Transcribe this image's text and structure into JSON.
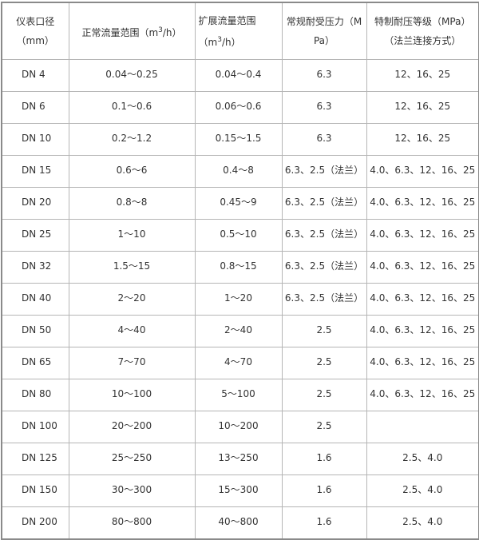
{
  "headers": {
    "c1": "仪表口径（mm）",
    "c2_pre": "正常流量范围（m",
    "c2_sup": "3",
    "c2_post": "/h）",
    "c3_pre": "扩展流量范围（m",
    "c3_sup": "3",
    "c3_post": "/h）",
    "c4": "常规耐受压力（MPa）",
    "c5": "特制耐压等级（MPa）（法兰连接方式）"
  },
  "rows": [
    [
      "DN 4",
      "0.04～0.25",
      "0.04～0.4",
      "6.3",
      "12、16、25"
    ],
    [
      "DN 6",
      "0.1～0.6",
      "0.06～0.6",
      "6.3",
      "12、16、25"
    ],
    [
      "DN 10",
      "0.2～1.2",
      "0.15～1.5",
      "6.3",
      "12、16、25"
    ],
    [
      "DN 15",
      "0.6～6",
      "0.4～8",
      "6.3、2.5（法兰）",
      "4.0、6.3、12、16、25"
    ],
    [
      "DN 20",
      "0.8～8",
      "0.45～9",
      "6.3、2.5（法兰）",
      "4.0、6.3、12、16、25"
    ],
    [
      "DN 25",
      "1～10",
      "0.5～10",
      "6.3、2.5（法兰）",
      "4.0、6.3、12、16、25"
    ],
    [
      "DN 32",
      "1.5～15",
      "0.8～15",
      "6.3、2.5（法兰）",
      "4.0、6.3、12、16、25"
    ],
    [
      "DN 40",
      "2～20",
      "1～20",
      "6.3、2.5（法兰）",
      "4.0、6.3、12、16、25"
    ],
    [
      "DN 50",
      "4～40",
      "2～40",
      "2.5",
      "4.0、6.3、12、16、25"
    ],
    [
      "DN 65",
      "7～70",
      "4～70",
      "2.5",
      "4.0、6.3、12、16、25"
    ],
    [
      "DN 80",
      "10～100",
      "5～100",
      "2.5",
      "4.0、6.3、12、16、25"
    ],
    [
      "DN 100",
      "20～200",
      "10～200",
      "2.5",
      ""
    ],
    [
      "DN 125",
      "25～250",
      "13～250",
      "1.6",
      "2.5、4.0"
    ],
    [
      "DN 150",
      "30～300",
      "15～300",
      "1.6",
      "2.5、4.0"
    ],
    [
      "DN 200",
      "80～800",
      "40～800",
      "1.6",
      "2.5、4.0"
    ]
  ]
}
